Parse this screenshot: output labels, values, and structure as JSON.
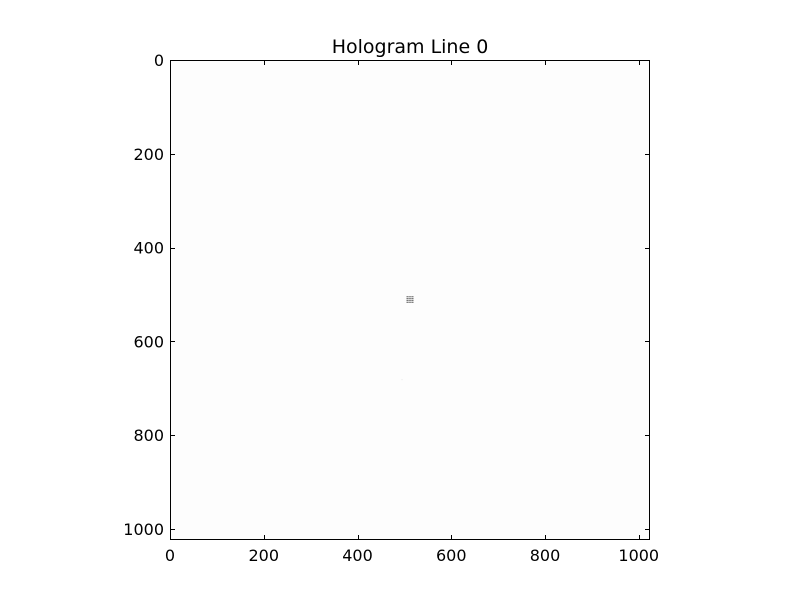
{
  "chart_data": {
    "type": "heatmap",
    "title": "Hologram Line 0",
    "xlabel": "",
    "ylabel": "",
    "xlim": [
      0,
      1024
    ],
    "ylim": [
      1024,
      0
    ],
    "x_ticks": [
      0,
      200,
      400,
      600,
      800,
      1000
    ],
    "y_ticks": [
      0,
      200,
      400,
      600,
      800,
      1000
    ],
    "x_tick_labels": [
      "0",
      "200",
      "400",
      "600",
      "800",
      "1000"
    ],
    "y_tick_labels": [
      "0",
      "200",
      "400",
      "600",
      "800",
      "1000"
    ],
    "background_color": "#fdfdfd",
    "frame_color": "#000000",
    "grid": false,
    "legend": "none",
    "features": [
      {
        "kind": "dot-grid",
        "x_range": [
          506,
          518
        ],
        "y_range": [
          505,
          517
        ],
        "rows": 4,
        "cols": 4,
        "color": "#555555"
      },
      {
        "kind": "faint-dot",
        "x": 495,
        "y": 682,
        "color": "#e6e6e6"
      }
    ]
  }
}
